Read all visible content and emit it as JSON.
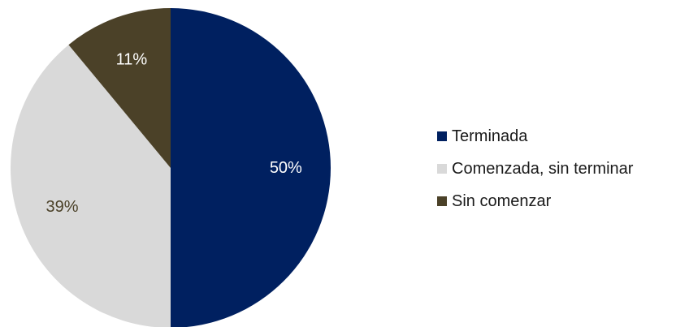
{
  "chart_data": {
    "type": "pie",
    "title": "",
    "slices": [
      {
        "label": "Terminada",
        "value": 50,
        "display": "50%",
        "color": "#002060",
        "label_color": "#ffffff"
      },
      {
        "label": "Comenzada, sin terminar",
        "value": 39,
        "display": "39%",
        "color": "#d9d9d9",
        "label_color": "#4b4128"
      },
      {
        "label": "Sin comenzar",
        "value": 11,
        "display": "11%",
        "color": "#4b4128",
        "label_color": "#ffffff"
      }
    ],
    "legend_position": "right"
  }
}
